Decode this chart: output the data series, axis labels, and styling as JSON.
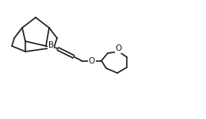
{
  "bg_color": "#ffffff",
  "line_color": "#1a1a1a",
  "line_width": 1.2,
  "B_label": "B",
  "O_label": "O",
  "O2_label": "O",
  "figsize": [
    2.6,
    1.5
  ],
  "dpi": 100
}
